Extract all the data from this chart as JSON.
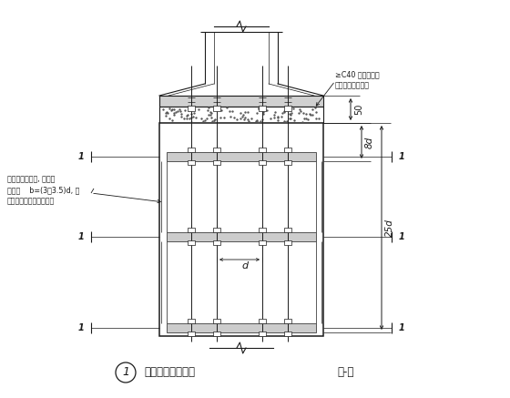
{
  "title": "柱脚锚栓固定支架",
  "subtitle": "（-）",
  "label_number": "1",
  "annotation_left1": "锚栓固定架角钢, 通常角",
  "annotation_left2": "钢肢宽    b=(3～3.5)d, 肢",
  "annotation_left3": "厚取相应型号中之最厚者",
  "annotation_right1": "≥C40 无收缩细石",
  "annotation_right2": "混凝土或锚固砂浆",
  "dim_50": "50",
  "dim_8d": "8d",
  "dim_25d": "25d",
  "dim_d": "d",
  "bg_color": "#ffffff",
  "line_color": "#1a1a1a"
}
